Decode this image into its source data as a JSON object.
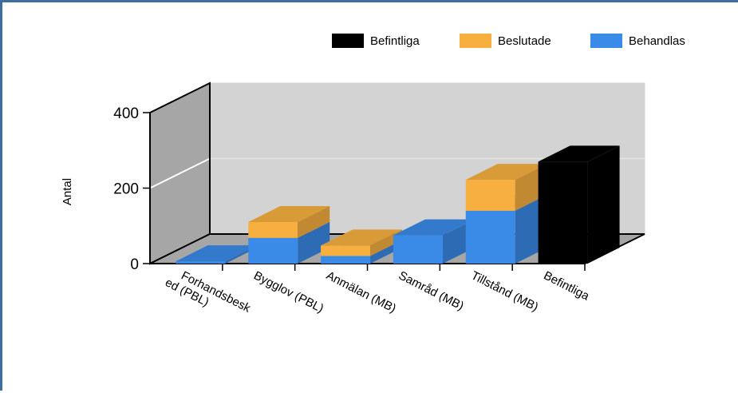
{
  "chart_data": {
    "type": "bar",
    "style": "3d-stacked",
    "categories": [
      [
        "Forhandsbesk",
        "ed (PBL)"
      ],
      [
        "Bygglov (PBL)"
      ],
      [
        "Anmälan (MB)"
      ],
      [
        "Samråd (MB)"
      ],
      [
        "Tillstånd (MB)"
      ],
      [
        "Befintliga"
      ]
    ],
    "series": [
      {
        "name": "Befintliga",
        "color": "#000000",
        "values": [
          0,
          0,
          0,
          0,
          0,
          270
        ]
      },
      {
        "name": "Beslutade",
        "color": "#f7b03f",
        "values": [
          0,
          42,
          28,
          0,
          82,
          0
        ]
      },
      {
        "name": "Behandlas",
        "color": "#3a8ae8",
        "values": [
          6,
          68,
          20,
          75,
          140,
          0
        ]
      }
    ],
    "stack_order": [
      "Behandlas",
      "Beslutade",
      "Befintliga"
    ],
    "ylabel": "Antal",
    "yticks": [
      "0",
      "200",
      "400"
    ],
    "ylim": [
      0,
      400
    ],
    "legend_position": "top-right"
  }
}
